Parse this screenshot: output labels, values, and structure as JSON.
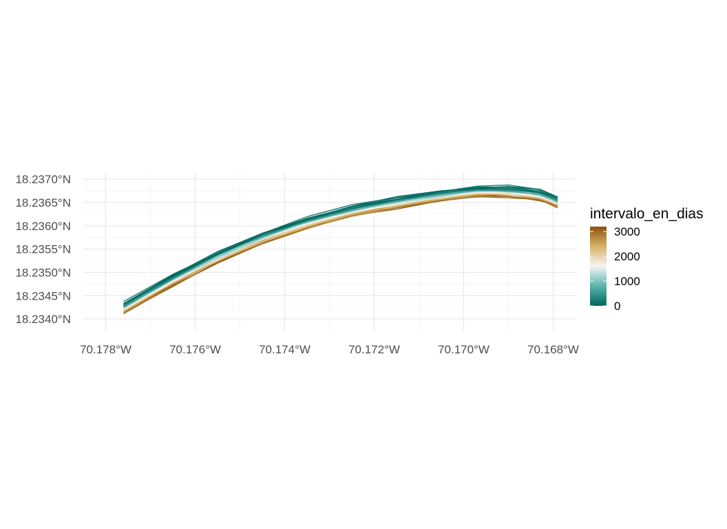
{
  "chart_data": {
    "type": "line",
    "title": "",
    "xlabel": "",
    "ylabel": "",
    "xlim": [
      -70.1785,
      -70.1675
    ],
    "ylim": [
      18.23375,
      18.23715
    ],
    "x_ticks": [
      {
        "value": -70.178,
        "label": "70.178°W"
      },
      {
        "value": -70.176,
        "label": "70.176°W"
      },
      {
        "value": -70.174,
        "label": "70.174°W"
      },
      {
        "value": -70.172,
        "label": "70.172°W"
      },
      {
        "value": -70.17,
        "label": "70.170°W"
      },
      {
        "value": -70.168,
        "label": "70.168°W"
      }
    ],
    "y_ticks": [
      {
        "value": 18.234,
        "label": "18.2340°N"
      },
      {
        "value": 18.2345,
        "label": "18.2345°N"
      },
      {
        "value": 18.235,
        "label": "18.2350°N"
      },
      {
        "value": 18.2355,
        "label": "18.2355°N"
      },
      {
        "value": 18.236,
        "label": "18.2360°N"
      },
      {
        "value": 18.2365,
        "label": "18.2365°N"
      },
      {
        "value": 18.237,
        "label": "18.2370°N"
      }
    ],
    "grid": true,
    "legend_position": "right",
    "color_scale": {
      "title": "intervalo_en_dias",
      "domain": [
        0,
        3200
      ],
      "breaks": [
        0,
        1000,
        2000,
        3000
      ],
      "stops": [
        {
          "value": 0,
          "color": "#01665e"
        },
        {
          "value": 800,
          "color": "#5ab4ac"
        },
        {
          "value": 1600,
          "color": "#f5f5f5"
        },
        {
          "value": 2400,
          "color": "#d8b365"
        },
        {
          "value": 3200,
          "color": "#8c510a"
        }
      ]
    },
    "shoreline_base": {
      "x": [
        -70.1776,
        -70.1765,
        -70.1755,
        -70.1745,
        -70.1735,
        -70.1725,
        -70.1715,
        -70.1705,
        -70.1697,
        -70.169,
        -70.1683,
        -70.1679
      ],
      "y": [
        18.23422,
        18.23482,
        18.2353,
        18.23572,
        18.23605,
        18.2363,
        18.23648,
        18.23663,
        18.23672,
        18.23672,
        18.23664,
        18.2365
      ]
    },
    "lines": [
      {
        "intervalo_en_dias": 0,
        "offset": 0.0001
      },
      {
        "intervalo_en_dias": 60,
        "offset": 0.00012
      },
      {
        "intervalo_en_dias": 120,
        "offset": 9e-05
      },
      {
        "intervalo_en_dias": 180,
        "offset": 0.00013
      },
      {
        "intervalo_en_dias": 250,
        "offset": 0.00011
      },
      {
        "intervalo_en_dias": 320,
        "offset": 7e-05
      },
      {
        "intervalo_en_dias": 400,
        "offset": 0.0001
      },
      {
        "intervalo_en_dias": 480,
        "offset": 6e-05
      },
      {
        "intervalo_en_dias": 560,
        "offset": 8e-05
      },
      {
        "intervalo_en_dias": 650,
        "offset": 5e-05
      },
      {
        "intervalo_en_dias": 740,
        "offset": 7e-05
      },
      {
        "intervalo_en_dias": 830,
        "offset": 4e-05
      },
      {
        "intervalo_en_dias": 920,
        "offset": 6e-05
      },
      {
        "intervalo_en_dias": 1010,
        "offset": 3e-05
      },
      {
        "intervalo_en_dias": 1100,
        "offset": 5e-05
      },
      {
        "intervalo_en_dias": 1200,
        "offset": 2e-05
      },
      {
        "intervalo_en_dias": 1300,
        "offset": 3e-05
      },
      {
        "intervalo_en_dias": 1400,
        "offset": 1e-05
      },
      {
        "intervalo_en_dias": 1500,
        "offset": 2e-05
      },
      {
        "intervalo_en_dias": 1600,
        "offset": 0.0
      },
      {
        "intervalo_en_dias": 1700,
        "offset": 1e-05
      },
      {
        "intervalo_en_dias": 1800,
        "offset": -1e-05
      },
      {
        "intervalo_en_dias": 1900,
        "offset": 0.0
      },
      {
        "intervalo_en_dias": 2000,
        "offset": -2e-05
      },
      {
        "intervalo_en_dias": 2100,
        "offset": -1e-05
      },
      {
        "intervalo_en_dias": 2200,
        "offset": -3e-05
      },
      {
        "intervalo_en_dias": 2300,
        "offset": -2e-05
      },
      {
        "intervalo_en_dias": 2400,
        "offset": -4e-05
      },
      {
        "intervalo_en_dias": 2500,
        "offset": -3e-05
      },
      {
        "intervalo_en_dias": 2600,
        "offset": -5e-05
      },
      {
        "intervalo_en_dias": 2700,
        "offset": -7e-05
      },
      {
        "intervalo_en_dias": 2780,
        "offset": -4e-05
      },
      {
        "intervalo_en_dias": 2860,
        "offset": -8e-05
      },
      {
        "intervalo_en_dias": 2940,
        "offset": -6e-05
      },
      {
        "intervalo_en_dias": 3020,
        "offset": -0.0001
      },
      {
        "intervalo_en_dias": 3100,
        "offset": -8e-05
      },
      {
        "intervalo_en_dias": 3180,
        "offset": -0.00011
      }
    ]
  }
}
